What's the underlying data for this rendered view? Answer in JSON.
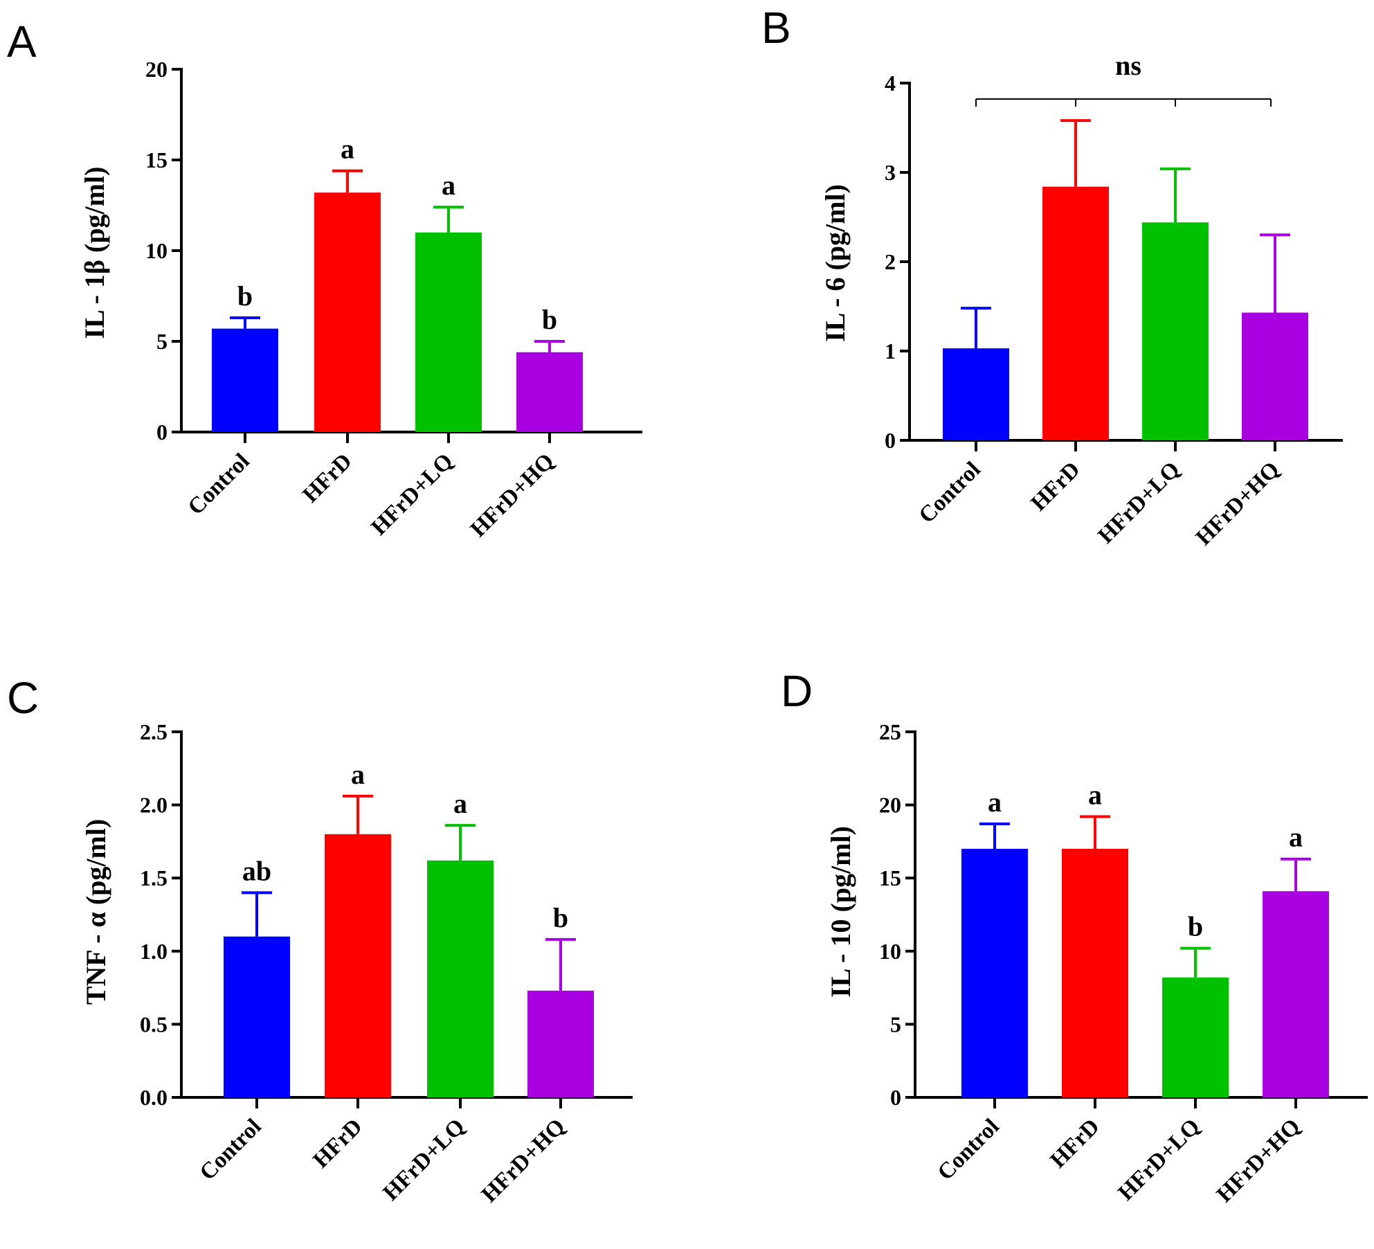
{
  "colors": {
    "Control": "#0000ff",
    "HFrD": "#ff0000",
    "HFrD+LQ": "#00c000",
    "HFrD+HQ": "#a800e0"
  },
  "chart_data": [
    {
      "type": "bar",
      "panel": "A",
      "ylabel": "IL - 1β (pg/ml)",
      "categories": [
        "Control",
        "HFrD",
        "HFrD+LQ",
        "HFrD+HQ"
      ],
      "values": [
        5.7,
        13.2,
        11.0,
        4.4
      ],
      "errors": [
        0.6,
        1.2,
        1.4,
        0.6
      ],
      "significance": [
        "b",
        "a",
        "a",
        "b"
      ],
      "ylim": [
        0,
        20
      ],
      "yticks": [
        "0",
        "5",
        "10",
        "15",
        "20"
      ]
    },
    {
      "type": "bar",
      "panel": "B",
      "ylabel": "IL - 6 (pg/ml)",
      "categories": [
        "Control",
        "HFrD",
        "HFrD+LQ",
        "HFrD+HQ"
      ],
      "values": [
        1.03,
        2.84,
        2.44,
        1.43
      ],
      "errors": [
        0.45,
        0.74,
        0.6,
        0.87
      ],
      "significance": [
        "",
        "",
        "",
        ""
      ],
      "bracket_label": "ns",
      "ylim": [
        0,
        4
      ],
      "yticks": [
        "0",
        "1",
        "2",
        "3",
        "4"
      ]
    },
    {
      "type": "bar",
      "panel": "C",
      "ylabel": "TNF - α (pg/ml)",
      "categories": [
        "Control",
        "HFrD",
        "HFrD+LQ",
        "HFrD+HQ"
      ],
      "values": [
        1.1,
        1.8,
        1.62,
        0.73
      ],
      "errors": [
        0.3,
        0.26,
        0.24,
        0.35
      ],
      "significance": [
        "ab",
        "a",
        "a",
        "b"
      ],
      "ylim": [
        0,
        2.5
      ],
      "yticks": [
        "0.0",
        "0.5",
        "1.0",
        "1.5",
        "2.0",
        "2.5"
      ]
    },
    {
      "type": "bar",
      "panel": "D",
      "ylabel": "IL - 10 (pg/ml)",
      "categories": [
        "Control",
        "HFrD",
        "HFrD+LQ",
        "HFrD+HQ"
      ],
      "values": [
        17.0,
        17.0,
        8.2,
        14.1
      ],
      "errors": [
        1.7,
        2.2,
        2.0,
        2.2
      ],
      "significance": [
        "a",
        "a",
        "b",
        "a"
      ],
      "ylim": [
        0,
        25
      ],
      "yticks": [
        "0",
        "5",
        "10",
        "15",
        "20",
        "25"
      ]
    }
  ]
}
